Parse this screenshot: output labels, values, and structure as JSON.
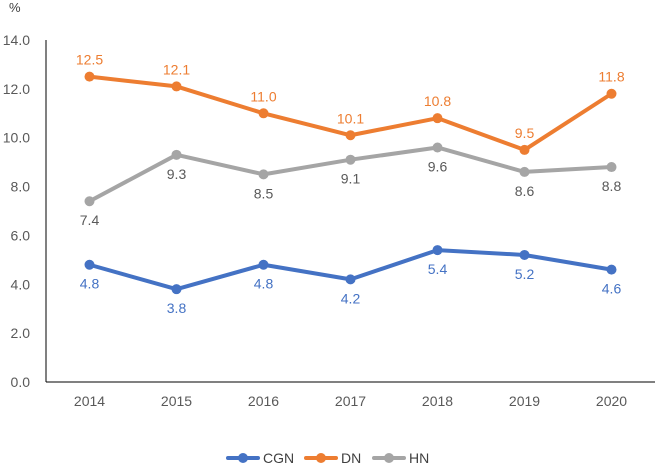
{
  "chart_data": {
    "type": "line",
    "title": "",
    "xlabel": "",
    "ylabel": "%",
    "categories": [
      "2014",
      "2015",
      "2016",
      "2017",
      "2018",
      "2019",
      "2020"
    ],
    "ylim": [
      0,
      14
    ],
    "yticks": [
      0,
      2,
      4,
      6,
      8,
      10,
      12,
      14
    ],
    "ytick_labels": [
      "0.0",
      "2.0",
      "4.0",
      "6.0",
      "8.0",
      "10.0",
      "12.0",
      "14.0"
    ],
    "grid": false,
    "legend_position": "bottom",
    "series": [
      {
        "name": "CGN",
        "color": "#4472C4",
        "values": [
          4.8,
          3.8,
          4.8,
          4.2,
          5.4,
          5.2,
          4.6
        ],
        "labels": [
          "4.8",
          "3.8",
          "4.8",
          "4.2",
          "5.4",
          "5.2",
          "4.6"
        ],
        "label_position": "below"
      },
      {
        "name": "DN",
        "color": "#ED7D31",
        "values": [
          12.5,
          12.1,
          11.0,
          10.1,
          10.8,
          9.5,
          11.8
        ],
        "labels": [
          "12.5",
          "12.1",
          "11.0",
          "10.1",
          "10.8",
          "9.5",
          "11.8"
        ],
        "label_position": "above"
      },
      {
        "name": "HN",
        "color": "#A5A5A5",
        "values": [
          7.4,
          9.3,
          8.5,
          9.1,
          9.6,
          8.6,
          8.8
        ],
        "labels": [
          "7.4",
          "9.3",
          "8.5",
          "9.1",
          "9.6",
          "8.6",
          "8.8"
        ],
        "label_position": "below"
      }
    ]
  }
}
